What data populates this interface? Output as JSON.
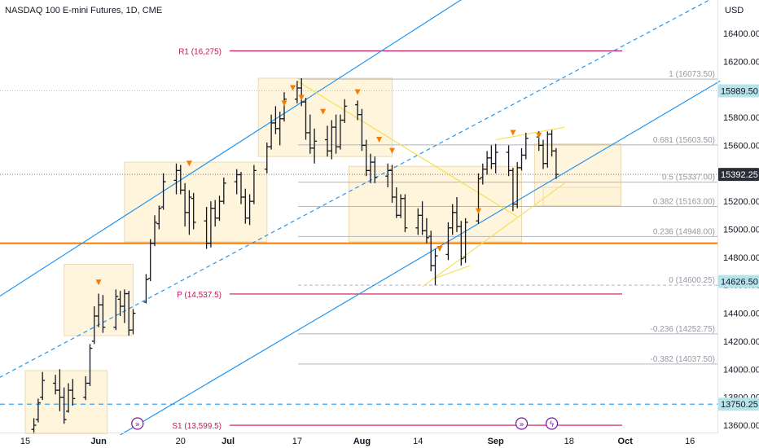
{
  "header": {
    "title": "NASDAQ 100 E-mini Futures, 1D, CME",
    "currency": "USD"
  },
  "colors": {
    "bar": "#131722",
    "channel": "#2196f3",
    "support": "#f57c00",
    "pivot": "#c2185b",
    "fib": "#b2b5be",
    "zone": "#fff3d6",
    "zone_border": "#ead9b5",
    "wedge": "#f5e05a",
    "marker": "#f57c00",
    "badge_blue": "#4fb6c4",
    "badge_dark": "#2a2e39",
    "event": "#7b1fa2"
  },
  "chart_data": {
    "type": "ohlc_bar",
    "title": "NASDAQ 100 E-mini Futures, 1D, CME",
    "currency": "USD",
    "ylim": [
      13550,
      16650
    ],
    "y_ticks": [
      13600,
      13800,
      14000,
      14200,
      14400,
      14600,
      14800,
      15000,
      15200,
      15400,
      15600,
      15800,
      16000,
      16200,
      16400
    ],
    "x_ticks": [
      {
        "label": "15",
        "day": 0
      },
      {
        "label": "Jun",
        "day": 17
      },
      {
        "label": "20",
        "day": 36
      },
      {
        "label": "Jul",
        "day": 47
      },
      {
        "label": "17",
        "day": 63
      },
      {
        "label": "Aug",
        "day": 78
      },
      {
        "label": "14",
        "day": 91
      },
      {
        "label": "Sep",
        "day": 109
      },
      {
        "label": "18",
        "day": 126
      },
      {
        "label": "Oct",
        "day": 139
      },
      {
        "label": "16",
        "day": 154
      }
    ],
    "bars": [
      {
        "day": 2,
        "o": 13570,
        "h": 13650,
        "l": 13540,
        "c": 13600
      },
      {
        "day": 3,
        "o": 13640,
        "h": 13790,
        "l": 13620,
        "c": 13760
      },
      {
        "day": 4,
        "o": 13800,
        "h": 13980,
        "l": 13780,
        "c": 13920
      },
      {
        "day": 7,
        "o": 13900,
        "h": 13960,
        "l": 13820,
        "c": 13850
      },
      {
        "day": 8,
        "o": 13850,
        "h": 14000,
        "l": 13700,
        "c": 13800
      },
      {
        "day": 9,
        "o": 13800,
        "h": 13870,
        "l": 13610,
        "c": 13640
      },
      {
        "day": 10,
        "o": 13700,
        "h": 13900,
        "l": 13690,
        "c": 13850
      },
      {
        "day": 11,
        "o": 13850,
        "h": 13930,
        "l": 13740,
        "c": 13790
      },
      {
        "day": 14,
        "o": 13800,
        "h": 13950,
        "l": 13780,
        "c": 13900
      },
      {
        "day": 15,
        "o": 13900,
        "h": 14180,
        "l": 13880,
        "c": 14150
      },
      {
        "day": 16,
        "o": 14200,
        "h": 14450,
        "l": 14180,
        "c": 14380
      },
      {
        "day": 17,
        "o": 14380,
        "h": 14540,
        "l": 14300,
        "c": 14460
      },
      {
        "day": 18,
        "o": 14460,
        "h": 14530,
        "l": 14260,
        "c": 14300
      },
      {
        "day": 21,
        "o": 14300,
        "h": 14570,
        "l": 14280,
        "c": 14520
      },
      {
        "day": 22,
        "o": 14500,
        "h": 14560,
        "l": 14380,
        "c": 14450
      },
      {
        "day": 23,
        "o": 14450,
        "h": 14570,
        "l": 14330,
        "c": 14540
      },
      {
        "day": 24,
        "o": 14540,
        "h": 14560,
        "l": 14240,
        "c": 14280
      },
      {
        "day": 25,
        "o": 14280,
        "h": 14430,
        "l": 14250,
        "c": 14400
      },
      {
        "day": 28,
        "o": 14480,
        "h": 14680,
        "l": 14470,
        "c": 14640
      },
      {
        "day": 29,
        "o": 14650,
        "h": 14930,
        "l": 14630,
        "c": 14900
      },
      {
        "day": 30,
        "o": 14900,
        "h": 15100,
        "l": 14880,
        "c": 15050
      },
      {
        "day": 31,
        "o": 15040,
        "h": 15170,
        "l": 15000,
        "c": 15150
      },
      {
        "day": 32,
        "o": 15160,
        "h": 15400,
        "l": 15140,
        "c": 15340
      },
      {
        "day": 35,
        "o": 15350,
        "h": 15470,
        "l": 15250,
        "c": 15420
      },
      {
        "day": 36,
        "o": 15420,
        "h": 15460,
        "l": 15250,
        "c": 15280
      },
      {
        "day": 37,
        "o": 15280,
        "h": 15330,
        "l": 15020,
        "c": 15120
      },
      {
        "day": 38,
        "o": 15120,
        "h": 15280,
        "l": 14960,
        "c": 15230
      },
      {
        "day": 39,
        "o": 15220,
        "h": 15260,
        "l": 15000,
        "c": 15050
      },
      {
        "day": 42,
        "o": 15060,
        "h": 15160,
        "l": 14860,
        "c": 14900
      },
      {
        "day": 43,
        "o": 14900,
        "h": 15200,
        "l": 14870,
        "c": 15150
      },
      {
        "day": 44,
        "o": 15150,
        "h": 15210,
        "l": 15020,
        "c": 15080
      },
      {
        "day": 45,
        "o": 15080,
        "h": 15240,
        "l": 15060,
        "c": 15200
      },
      {
        "day": 46,
        "o": 15200,
        "h": 15370,
        "l": 15180,
        "c": 15330
      },
      {
        "day": 49,
        "o": 15340,
        "h": 15430,
        "l": 15250,
        "c": 15390
      },
      {
        "day": 50,
        "o": 15390,
        "h": 15410,
        "l": 15180,
        "c": 15230
      },
      {
        "day": 51,
        "o": 15230,
        "h": 15290,
        "l": 15040,
        "c": 15080
      },
      {
        "day": 52,
        "o": 15080,
        "h": 15250,
        "l": 15030,
        "c": 15200
      },
      {
        "day": 53,
        "o": 15200,
        "h": 15460,
        "l": 15180,
        "c": 15420
      },
      {
        "day": 56,
        "o": 15430,
        "h": 15620,
        "l": 15400,
        "c": 15590
      },
      {
        "day": 57,
        "o": 15590,
        "h": 15820,
        "l": 15570,
        "c": 15760
      },
      {
        "day": 58,
        "o": 15760,
        "h": 15880,
        "l": 15680,
        "c": 15720
      },
      {
        "day": 59,
        "o": 15720,
        "h": 15840,
        "l": 15600,
        "c": 15790
      },
      {
        "day": 60,
        "o": 15790,
        "h": 15980,
        "l": 15770,
        "c": 15930
      },
      {
        "day": 63,
        "o": 15930,
        "h": 16060,
        "l": 15900,
        "c": 16010
      },
      {
        "day": 64,
        "o": 16010,
        "h": 16080,
        "l": 15880,
        "c": 15910
      },
      {
        "day": 65,
        "o": 15910,
        "h": 15940,
        "l": 15640,
        "c": 15690
      },
      {
        "day": 66,
        "o": 15690,
        "h": 15820,
        "l": 15540,
        "c": 15580
      },
      {
        "day": 67,
        "o": 15580,
        "h": 15720,
        "l": 15470,
        "c": 15630
      },
      {
        "day": 70,
        "o": 15640,
        "h": 15740,
        "l": 15520,
        "c": 15560
      },
      {
        "day": 71,
        "o": 15560,
        "h": 15780,
        "l": 15500,
        "c": 15730
      },
      {
        "day": 72,
        "o": 15730,
        "h": 15820,
        "l": 15540,
        "c": 15590
      },
      {
        "day": 73,
        "o": 15590,
        "h": 15820,
        "l": 15570,
        "c": 15780
      },
      {
        "day": 74,
        "o": 15780,
        "h": 15930,
        "l": 15760,
        "c": 15880
      },
      {
        "day": 77,
        "o": 15890,
        "h": 15920,
        "l": 15780,
        "c": 15820
      },
      {
        "day": 78,
        "o": 15820,
        "h": 15860,
        "l": 15560,
        "c": 15600
      },
      {
        "day": 79,
        "o": 15600,
        "h": 15640,
        "l": 15380,
        "c": 15420
      },
      {
        "day": 80,
        "o": 15420,
        "h": 15540,
        "l": 15330,
        "c": 15480
      },
      {
        "day": 81,
        "o": 15480,
        "h": 15520,
        "l": 15330,
        "c": 15370
      },
      {
        "day": 84,
        "o": 15380,
        "h": 15470,
        "l": 15300,
        "c": 15420
      },
      {
        "day": 85,
        "o": 15420,
        "h": 15460,
        "l": 15190,
        "c": 15230
      },
      {
        "day": 86,
        "o": 15230,
        "h": 15300,
        "l": 15080,
        "c": 15100
      },
      {
        "day": 87,
        "o": 15100,
        "h": 15250,
        "l": 15080,
        "c": 15220
      },
      {
        "day": 88,
        "o": 15220,
        "h": 15250,
        "l": 14980,
        "c": 15010
      },
      {
        "day": 91,
        "o": 15010,
        "h": 15150,
        "l": 14960,
        "c": 15100
      },
      {
        "day": 92,
        "o": 15100,
        "h": 15200,
        "l": 14960,
        "c": 14990
      },
      {
        "day": 93,
        "o": 14990,
        "h": 15080,
        "l": 14900,
        "c": 14940
      },
      {
        "day": 94,
        "o": 14950,
        "h": 14990,
        "l": 14700,
        "c": 14740
      },
      {
        "day": 95,
        "o": 14740,
        "h": 14860,
        "l": 14600,
        "c": 14810
      },
      {
        "day": 98,
        "o": 14820,
        "h": 15050,
        "l": 14780,
        "c": 15010
      },
      {
        "day": 99,
        "o": 15010,
        "h": 15180,
        "l": 14960,
        "c": 15120
      },
      {
        "day": 100,
        "o": 15120,
        "h": 15230,
        "l": 14980,
        "c": 15020
      },
      {
        "day": 101,
        "o": 15020,
        "h": 15060,
        "l": 14740,
        "c": 14790
      },
      {
        "day": 102,
        "o": 14800,
        "h": 15080,
        "l": 14760,
        "c": 15050
      },
      {
        "day": 105,
        "o": 15060,
        "h": 15400,
        "l": 15040,
        "c": 15360
      },
      {
        "day": 106,
        "o": 15370,
        "h": 15470,
        "l": 15320,
        "c": 15430
      },
      {
        "day": 107,
        "o": 15430,
        "h": 15560,
        "l": 15390,
        "c": 15510
      },
      {
        "day": 108,
        "o": 15510,
        "h": 15600,
        "l": 15430,
        "c": 15470
      },
      {
        "day": 109,
        "o": 15470,
        "h": 15610,
        "l": 15400,
        "c": 15550
      },
      {
        "day": 112,
        "o": 15550,
        "h": 15600,
        "l": 15380,
        "c": 15420
      },
      {
        "day": 113,
        "o": 15420,
        "h": 15440,
        "l": 15130,
        "c": 15180
      },
      {
        "day": 114,
        "o": 15180,
        "h": 15480,
        "l": 15150,
        "c": 15440
      },
      {
        "day": 115,
        "o": 15440,
        "h": 15580,
        "l": 15420,
        "c": 15530
      },
      {
        "day": 116,
        "o": 15530,
        "h": 15690,
        "l": 15500,
        "c": 15650
      },
      {
        "day": 119,
        "o": 15660,
        "h": 15700,
        "l": 15560,
        "c": 15600
      },
      {
        "day": 120,
        "o": 15600,
        "h": 15640,
        "l": 15430,
        "c": 15470
      },
      {
        "day": 121,
        "o": 15470,
        "h": 15700,
        "l": 15440,
        "c": 15680
      },
      {
        "day": 122,
        "o": 15680,
        "h": 15710,
        "l": 15520,
        "c": 15560
      },
      {
        "day": 123,
        "o": 15560,
        "h": 15580,
        "l": 15360,
        "c": 15392.25
      }
    ],
    "pivots": [
      {
        "label": "R1 (16,275)",
        "value": 16275
      },
      {
        "label": "P (14,537.5)",
        "value": 14537.5
      },
      {
        "label": "S1 (13,599.5)",
        "value": 13599.5
      }
    ],
    "fib_levels": [
      {
        "label": "1 (16073.50)",
        "value": 16073.5
      },
      {
        "label": "0.681 (15603.50)",
        "value": 15603.5
      },
      {
        "label": "0.5 (15337.00)",
        "value": 15337
      },
      {
        "label": "0.382 (15163.00)",
        "value": 15163
      },
      {
        "label": "0.236 (14948.00)",
        "value": 14948
      },
      {
        "label": "0 (14600.25)",
        "value": 14600.25
      },
      {
        "label": "-0.236 (14252.75)",
        "value": 14252.75
      },
      {
        "label": "-0.382 (14037.50)",
        "value": 14037.5
      }
    ],
    "horizontal_lines": [
      {
        "value": 14900,
        "style": "solid-orange"
      },
      {
        "value": 13750.25,
        "style": "dashed-blue"
      }
    ],
    "price_badges": [
      {
        "label": "15989.50",
        "value": 15989.5,
        "style": "blue"
      },
      {
        "label": "15392.25",
        "value": 15392.25,
        "style": "dark"
      },
      {
        "label": "14626.50",
        "value": 14626.5,
        "style": "blue"
      },
      {
        "label": "13750.25",
        "value": 13750.25,
        "style": "blue"
      }
    ],
    "markers": [
      {
        "day": 17,
        "value": 14620
      },
      {
        "day": 38,
        "value": 15470
      },
      {
        "day": 60,
        "value": 15900
      },
      {
        "day": 62,
        "value": 16010
      },
      {
        "day": 64,
        "value": 15940
      },
      {
        "day": 69,
        "value": 15840
      },
      {
        "day": 77,
        "value": 15980
      },
      {
        "day": 82,
        "value": 15640
      },
      {
        "day": 85,
        "value": 15560
      },
      {
        "day": 96,
        "value": 14860
      },
      {
        "day": 105,
        "value": 15130
      },
      {
        "day": 113,
        "value": 15690
      },
      {
        "day": 119,
        "value": 15670
      }
    ]
  }
}
